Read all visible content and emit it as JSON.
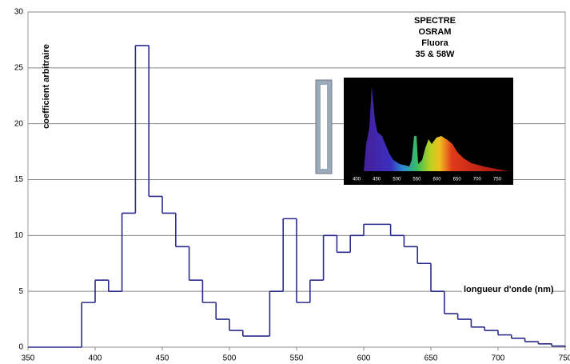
{
  "chart_data": {
    "type": "step",
    "title": [
      "SPECTRE",
      "OSRAM",
      "Fluora",
      "35 & 58W"
    ],
    "y_label": "coefficient arbitraire",
    "x_label": "longueur d'onde (nm)",
    "x": [
      350,
      390,
      400,
      410,
      420,
      430,
      440,
      450,
      460,
      470,
      480,
      490,
      500,
      510,
      530,
      540,
      550,
      560,
      570,
      580,
      590,
      600,
      620,
      630,
      640,
      650,
      660,
      670,
      680,
      690,
      700,
      710,
      720,
      730,
      740,
      750
    ],
    "values": [
      0,
      4,
      6,
      5,
      12,
      27,
      13.5,
      12,
      9,
      6,
      4,
      2.5,
      1.5,
      1,
      5,
      11.5,
      4,
      6,
      10,
      8.5,
      10,
      11,
      10,
      9,
      7.5,
      5,
      3,
      2.5,
      1.8,
      1.5,
      1.1,
      0.8,
      0.5,
      0.3,
      0.1,
      0
    ],
    "color": "#2b2b8c",
    "xlim": [
      350,
      750
    ],
    "ylim": [
      0,
      30
    ],
    "xticks": [
      350,
      400,
      450,
      500,
      550,
      600,
      650,
      700,
      750
    ],
    "yticks": [
      0,
      5,
      10,
      15,
      20,
      25,
      30
    ],
    "grid": true,
    "inset": {
      "xlim": [
        368,
        790
      ],
      "xticks": [
        400,
        450,
        500,
        550,
        600,
        650,
        700,
        750
      ]
    }
  }
}
